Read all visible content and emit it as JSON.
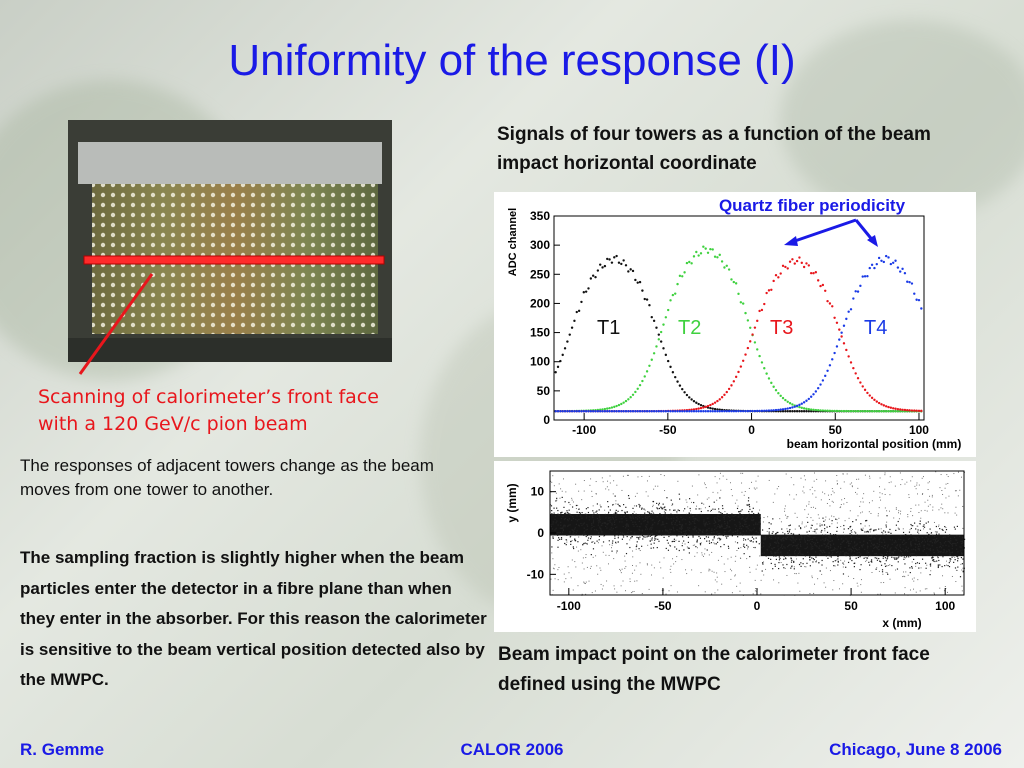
{
  "slide": {
    "title": "Uniformity of the response (I)",
    "photo_caption_lines": [
      "Scanning of calorimeter’s front face",
      "with a 120 GeV/c pion beam"
    ],
    "para1": "The responses of adjacent towers change as the beam moves from one tower to another.",
    "para2": "The sampling fraction is slightly higher when the beam particles enter the detector in a fibre plane than when they enter in the absorber. For this reason the calorimeter is sensitive to the beam vertical position detected also by the MWPC.",
    "chart1_caption": "Signals of four towers as a function of the beam impact horizontal coordinate",
    "chart2_caption": "Beam impact point on  the calorimeter front face defined using the MWPC",
    "footer": {
      "left": "R. Gemme",
      "center": "CALOR 2006",
      "right": "Chicago, June 8 2006"
    }
  },
  "colors": {
    "title": "#1a1ae6",
    "caption_red": "#e8161c",
    "t1": "#111111",
    "t2": "#3fd13f",
    "t3": "#e8161c",
    "t4": "#1a3ae6",
    "arrow": "#1a1ae6"
  },
  "chart_data": [
    {
      "type": "scatter",
      "xlabel": "beam horizontal position (mm)",
      "ylabel": "ADC channel",
      "xlim": [
        -118,
        103
      ],
      "ylim": [
        0,
        350
      ],
      "xticks": [
        "-100",
        "-50",
        "0",
        "50",
        "100"
      ],
      "yticks": [
        "0",
        "50",
        "100",
        "150",
        "200",
        "250",
        "300",
        "350"
      ],
      "annotation": "Quartz fiber periodicity",
      "series": [
        {
          "name": "T1",
          "color": "#111111",
          "center": -82,
          "peak": 288
        },
        {
          "name": "T2",
          "color": "#3fd13f",
          "center": -27,
          "peak": 305
        },
        {
          "name": "T3",
          "color": "#e8161c",
          "center": 27,
          "peak": 285
        },
        {
          "name": "T4",
          "color": "#1a3ae6",
          "center": 80,
          "peak": 288
        }
      ]
    },
    {
      "type": "scatter",
      "xlabel": "x (mm)",
      "ylabel": "y (mm)",
      "xlim": [
        -110,
        110
      ],
      "ylim": [
        -15,
        15
      ],
      "xticks": [
        "-100",
        "-50",
        "0",
        "50",
        "100"
      ],
      "yticks": [
        "10",
        "0",
        "-10"
      ],
      "bands": [
        {
          "x_from": -110,
          "x_to": 2,
          "y_center": 2
        },
        {
          "x_from": 2,
          "x_to": 110,
          "y_center": -3
        }
      ]
    }
  ]
}
